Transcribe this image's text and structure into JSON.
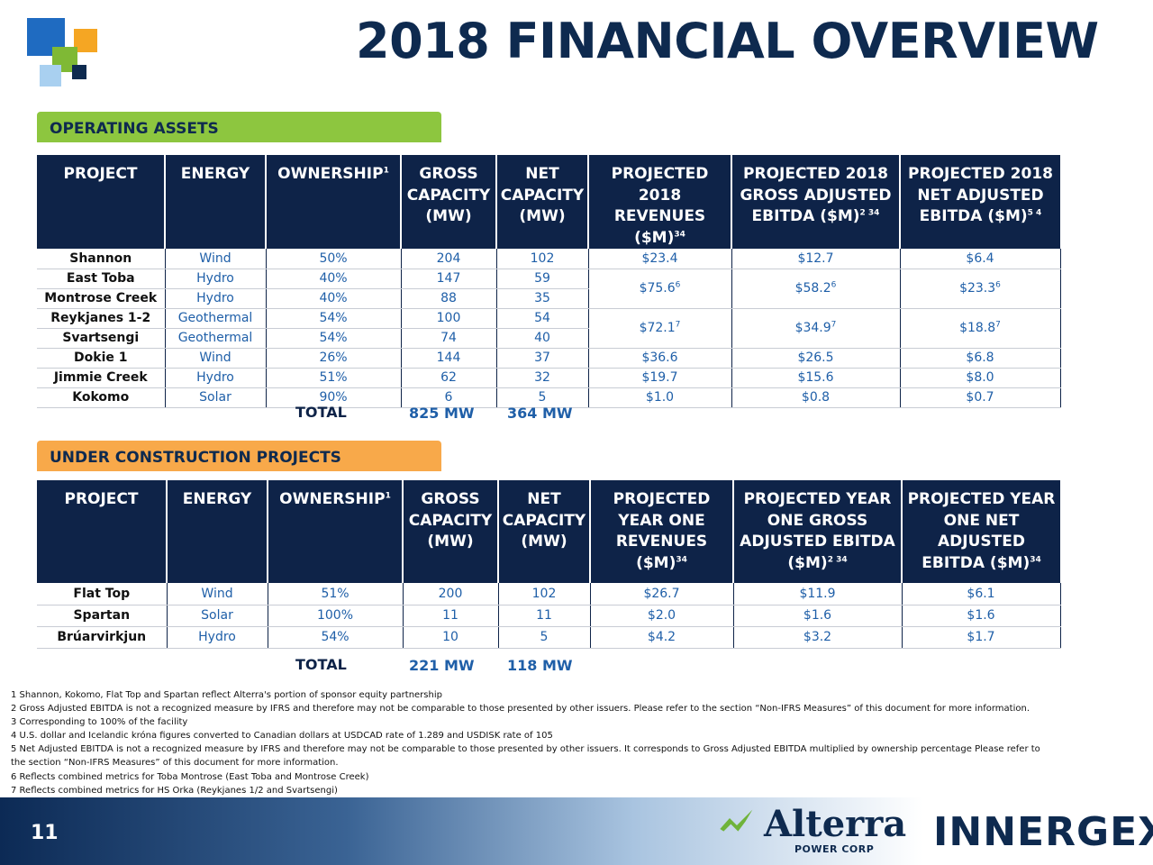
{
  "title": "2018 FINANCIAL OVERVIEW",
  "colors": {
    "navy": "#0e2348",
    "green_tab": "#8dc63f",
    "orange_tab": "#f8a94a",
    "blue_text": "#1f5fa8"
  },
  "operating": {
    "heading": "OPERATING ASSETS",
    "headers": [
      "PROJECT",
      "ENERGY",
      "OWNERSHIP",
      "GROSS CAPACITY (MW)",
      "NET CAPACITY (MW)",
      "PROJECTED 2018 REVENUES ($M)",
      "PROJECTED 2018 GROSS ADJUSTED EBITDA ($M)",
      "PROJECTED 2018 NET ADJUSTED EBITDA ($M)"
    ],
    "header_sups": [
      "",
      "",
      "1",
      "",
      "",
      "34",
      "2 34",
      "5 4"
    ],
    "rows": [
      {
        "project": "Shannon",
        "energy": "Wind",
        "ownership": "50%",
        "gross": "204",
        "net": "102",
        "rev": "$23.4",
        "gadj": "$12.7",
        "nadj": "$6.4"
      },
      {
        "project": "East Toba",
        "energy": "Hydro",
        "ownership": "40%",
        "gross": "147",
        "net": "59",
        "rev": "$75.6",
        "rev_sup": "6",
        "gadj": "$58.2",
        "gadj_sup": "6",
        "nadj": "$23.3",
        "nadj_sup": "6"
      },
      {
        "project": "Montrose Creek",
        "energy": "Hydro",
        "ownership": "40%",
        "gross": "88",
        "net": "35"
      },
      {
        "project": "Reykjanes 1-2",
        "energy": "Geothermal",
        "ownership": "54%",
        "gross": "100",
        "net": "54",
        "rev": "$72.1",
        "rev_sup": "7",
        "gadj": "$34.9",
        "gadj_sup": "7",
        "nadj": "$18.8",
        "nadj_sup": "7"
      },
      {
        "project": "Svartsengi",
        "energy": "Geothermal",
        "ownership": "54%",
        "gross": "74",
        "net": "40"
      },
      {
        "project": "Dokie 1",
        "energy": "Wind",
        "ownership": "26%",
        "gross": "144",
        "net": "37",
        "rev": "$36.6",
        "gadj": "$26.5",
        "nadj": "$6.8"
      },
      {
        "project": "Jimmie Creek",
        "energy": "Hydro",
        "ownership": "51%",
        "gross": "62",
        "net": "32",
        "rev": "$19.7",
        "gadj": "$15.6",
        "nadj": "$8.0"
      },
      {
        "project": "Kokomo",
        "energy": "Solar",
        "ownership": "90%",
        "gross": "6",
        "net": "5",
        "rev": "$1.0",
        "gadj": "$0.8",
        "nadj": "$0.7"
      }
    ],
    "total_label": "TOTAL",
    "total_gross": "825 MW",
    "total_net": "364 MW"
  },
  "construction": {
    "heading": "UNDER CONSTRUCTION PROJECTS",
    "headers": [
      "PROJECT",
      "ENERGY",
      "OWNERSHIP",
      "GROSS CAPACITY (MW)",
      "NET CAPACITY (MW)",
      "PROJECTED YEAR ONE REVENUES ($M)",
      "PROJECTED YEAR ONE GROSS ADJUSTED EBITDA ($M)",
      "PROJECTED YEAR ONE NET ADJUSTED EBITDA ($M)"
    ],
    "rows": [
      {
        "project": "Flat Top",
        "energy": "Wind",
        "ownership": "51%",
        "gross": "200",
        "net": "102",
        "rev": "$26.7",
        "gadj": "$11.9",
        "nadj": "$6.1"
      },
      {
        "project": "Spartan",
        "energy": "Solar",
        "ownership": "100%",
        "gross": "11",
        "net": "11",
        "rev": "$2.0",
        "gadj": "$1.6",
        "nadj": "$1.6"
      },
      {
        "project": "Brúarvirkjun",
        "energy": "Hydro",
        "ownership": "54%",
        "gross": "10",
        "net": "5",
        "rev": "$4.2",
        "gadj": "$3.2",
        "nadj": "$1.7"
      }
    ],
    "total_label": "TOTAL",
    "total_gross": "221 MW",
    "total_net": "118 MW"
  },
  "footnotes": [
    "1 Shannon, Kokomo, Flat Top and Spartan reflect Alterra's portion of sponsor equity partnership",
    "2 Gross Adjusted EBITDA is not a recognized measure by IFRS and therefore may not be comparable to those presented by other issuers. Please refer to the section “Non-IFRS Measures” of this document for more information.",
    "3 Corresponding to 100% of the facility",
    "4 U.S. dollar and Icelandic króna figures converted to Canadian dollars at USDCAD rate of 1.289 and USDISK rate of 105",
    "5 Net Adjusted EBITDA is not a recognized measure by IFRS and therefore may not be comparable to those presented by other issuers. It corresponds to Gross Adjusted EBITDA multiplied by ownership percentage Please refer to",
    "the section “Non-IFRS Measures” of this document for more information.",
    "6 Reflects combined metrics for Toba Montrose (East Toba and Montrose Creek)",
    "7 Reflects combined metrics for HS Orka (Reykjanes 1/2 and Svartsengi)"
  ],
  "footer": {
    "page_number": "11",
    "alterra_name": "Alterra",
    "alterra_sub": "POWER CORP",
    "innergex": "INNERGEX"
  }
}
